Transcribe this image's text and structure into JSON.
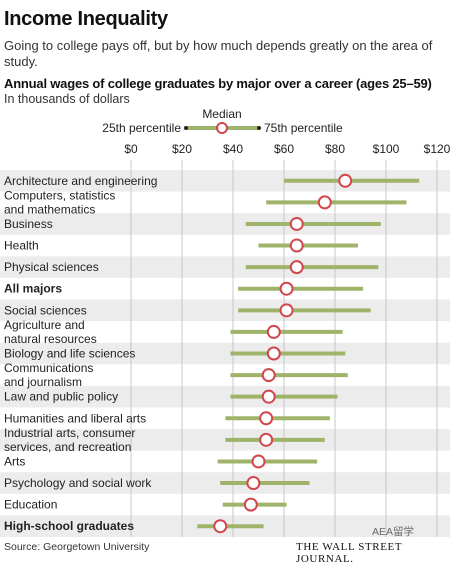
{
  "title": "Income Inequality",
  "subtitle": "Going to college pays off, but by how much depends greatly on the area of study.",
  "chart_heading": "Annual wages of college graduates by major over a career (ages 25–59)",
  "units_note": "In thousands of dollars",
  "legend": {
    "median": "Median",
    "p25": "25th percentile",
    "p75": "75th percentile"
  },
  "source": "Source: Georgetown University",
  "publisher": "THE WALL STREET JOURNAL.",
  "watermark": "AEA留学",
  "colors": {
    "bar": "#9fb36a",
    "median_stroke": "#d2474e",
    "row_shade": "#ececec",
    "grid": "#bdbdbd"
  },
  "chart_data": {
    "type": "dot-range",
    "title": "Annual wages of college graduates by major over a career (ages 25–59)",
    "xlabel": "In thousands of dollars",
    "x_ticks": [
      "$0",
      "$20",
      "$40",
      "$60",
      "$80",
      "$100",
      "$120"
    ],
    "xlim": [
      0,
      120
    ],
    "grid": true,
    "legend_position": "top",
    "rows": [
      {
        "label": "Architecture and engineering",
        "p25": 60,
        "median": 84,
        "p75": 113,
        "bold": false
      },
      {
        "label": "Computers, statistics\nand mathematics",
        "p25": 53,
        "median": 76,
        "p75": 108,
        "bold": false
      },
      {
        "label": "Business",
        "p25": 45,
        "median": 65,
        "p75": 98,
        "bold": false
      },
      {
        "label": "Health",
        "p25": 50,
        "median": 65,
        "p75": 89,
        "bold": false
      },
      {
        "label": "Physical sciences",
        "p25": 45,
        "median": 65,
        "p75": 97,
        "bold": false
      },
      {
        "label": "All majors",
        "p25": 42,
        "median": 61,
        "p75": 91,
        "bold": true
      },
      {
        "label": "Social sciences",
        "p25": 42,
        "median": 61,
        "p75": 94,
        "bold": false
      },
      {
        "label": "Agriculture and\nnatural resources",
        "p25": 39,
        "median": 56,
        "p75": 83,
        "bold": false
      },
      {
        "label": "Biology and life sciences",
        "p25": 39,
        "median": 56,
        "p75": 84,
        "bold": false
      },
      {
        "label": "Communications\nand journalism",
        "p25": 39,
        "median": 54,
        "p75": 85,
        "bold": false
      },
      {
        "label": "Law and public policy",
        "p25": 39,
        "median": 54,
        "p75": 81,
        "bold": false
      },
      {
        "label": "Humanities and liberal arts",
        "p25": 37,
        "median": 53,
        "p75": 78,
        "bold": false
      },
      {
        "label": "Industrial arts, consumer\nservices, and recreation",
        "p25": 37,
        "median": 53,
        "p75": 76,
        "bold": false
      },
      {
        "label": "Arts",
        "p25": 34,
        "median": 50,
        "p75": 73,
        "bold": false
      },
      {
        "label": "Psychology and social work",
        "p25": 35,
        "median": 48,
        "p75": 70,
        "bold": false
      },
      {
        "label": "Education",
        "p25": 36,
        "median": 47,
        "p75": 61,
        "bold": false
      },
      {
        "label": "High-school graduates",
        "p25": 26,
        "median": 35,
        "p75": 52,
        "bold": true
      }
    ]
  }
}
